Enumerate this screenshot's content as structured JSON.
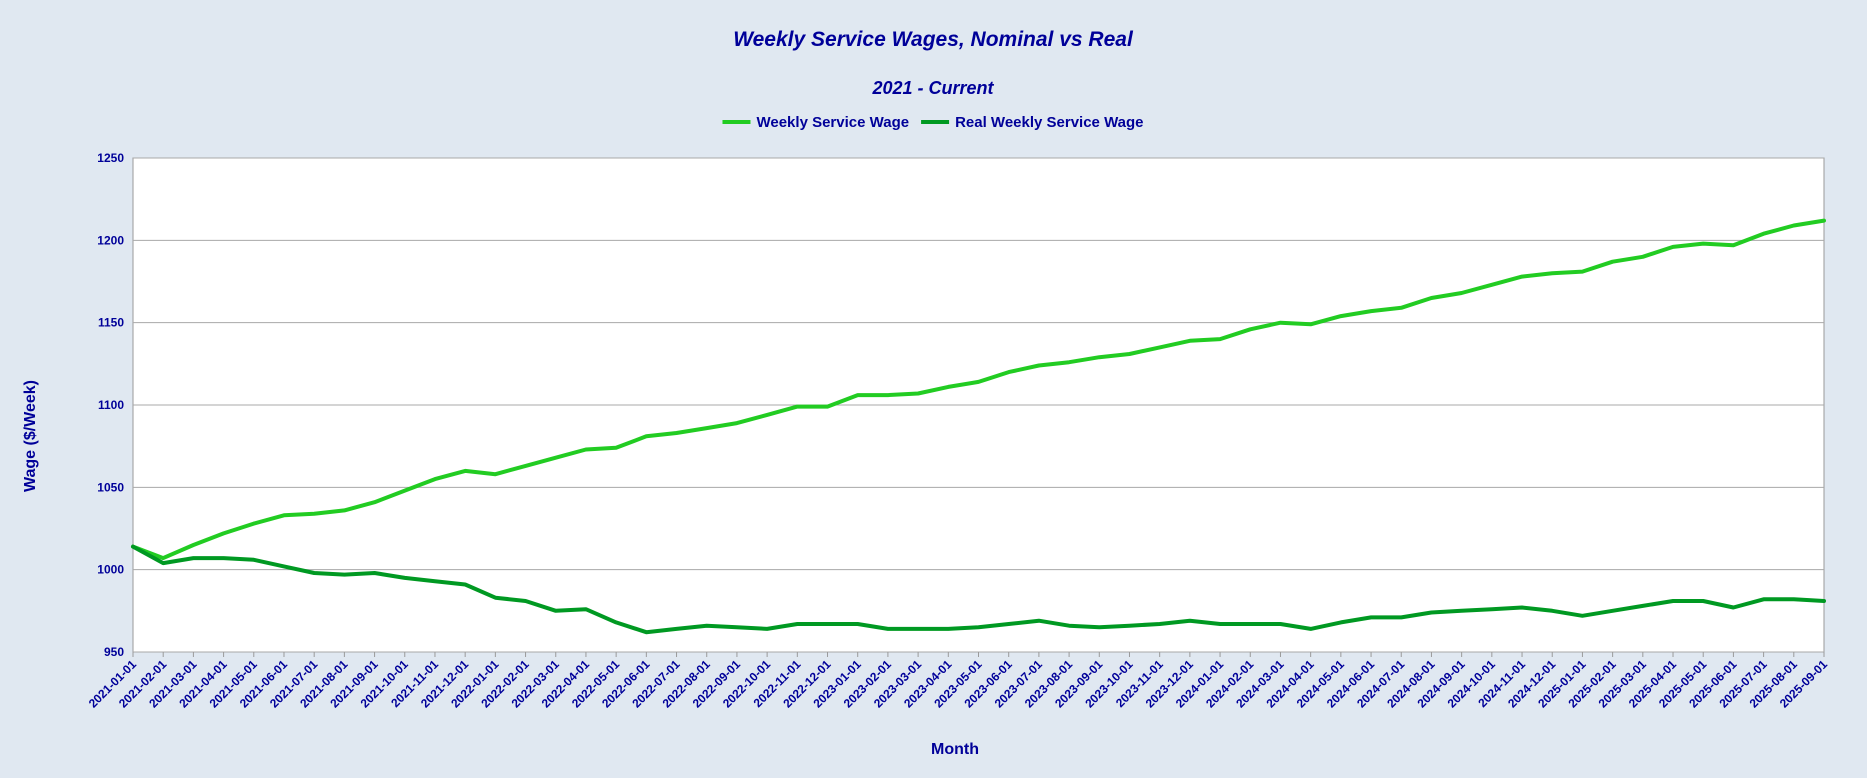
{
  "chart_data": {
    "type": "line",
    "title": "Weekly Service Wages, Nominal vs Real",
    "subtitle": "2021 - Current",
    "xlabel": "Month",
    "ylabel": "Wage ($/Week)",
    "ylim": [
      950,
      1250
    ],
    "yticks": [
      950,
      1000,
      1050,
      1100,
      1150,
      1200,
      1250
    ],
    "grid": "horizontal",
    "legend_position": "top-center",
    "background_color": "#e0e8f1",
    "plot_background_color": "#ffffff",
    "text_color": "#000099",
    "categories": [
      "2021-01-01",
      "2021-02-01",
      "2021-03-01",
      "2021-04-01",
      "2021-05-01",
      "2021-06-01",
      "2021-07-01",
      "2021-08-01",
      "2021-09-01",
      "2021-10-01",
      "2021-11-01",
      "2021-12-01",
      "2022-01-01",
      "2022-02-01",
      "2022-03-01",
      "2022-04-01",
      "2022-05-01",
      "2022-06-01",
      "2022-07-01",
      "2022-08-01",
      "2022-09-01",
      "2022-10-01",
      "2022-11-01",
      "2022-12-01",
      "2023-01-01",
      "2023-02-01",
      "2023-03-01",
      "2023-04-01",
      "2023-05-01",
      "2023-06-01",
      "2023-07-01",
      "2023-08-01",
      "2023-09-01",
      "2023-10-01",
      "2023-11-01",
      "2023-12-01",
      "2024-01-01",
      "2024-02-01",
      "2024-03-01",
      "2024-04-01",
      "2024-05-01",
      "2024-06-01",
      "2024-07-01",
      "2024-08-01",
      "2024-09-01",
      "2024-10-01",
      "2024-11-01",
      "2024-12-01",
      "2025-01-01",
      "2025-02-01",
      "2025-03-01",
      "2025-04-01",
      "2025-05-01",
      "2025-06-01",
      "2025-07-01",
      "2025-08-01",
      "2025-09-01"
    ],
    "series": [
      {
        "name": "Weekly Service Wage",
        "color": "#22cc22",
        "values": [
          1014,
          1007,
          1015,
          1022,
          1028,
          1033,
          1034,
          1036,
          1041,
          1048,
          1055,
          1060,
          1058,
          1063,
          1068,
          1073,
          1074,
          1081,
          1083,
          1086,
          1089,
          1094,
          1099,
          1099,
          1106,
          1106,
          1107,
          1111,
          1114,
          1120,
          1124,
          1126,
          1129,
          1131,
          1135,
          1139,
          1140,
          1146,
          1150,
          1149,
          1154,
          1157,
          1159,
          1165,
          1168,
          1173,
          1178,
          1180,
          1181,
          1187,
          1190,
          1196,
          1198,
          1197,
          1204,
          1209,
          1212
        ]
      },
      {
        "name": "Real Weekly Service  Wage",
        "color": "#009922",
        "values": [
          1014,
          1004,
          1007,
          1007,
          1006,
          1002,
          998,
          997,
          998,
          995,
          993,
          991,
          983,
          981,
          975,
          976,
          968,
          962,
          964,
          966,
          965,
          964,
          967,
          967,
          967,
          964,
          964,
          964,
          965,
          967,
          969,
          966,
          965,
          966,
          967,
          969,
          967,
          967,
          967,
          964,
          968,
          971,
          971,
          974,
          975,
          976,
          977,
          975,
          972,
          975,
          978,
          981,
          981,
          977,
          982,
          982,
          981
        ]
      }
    ]
  }
}
